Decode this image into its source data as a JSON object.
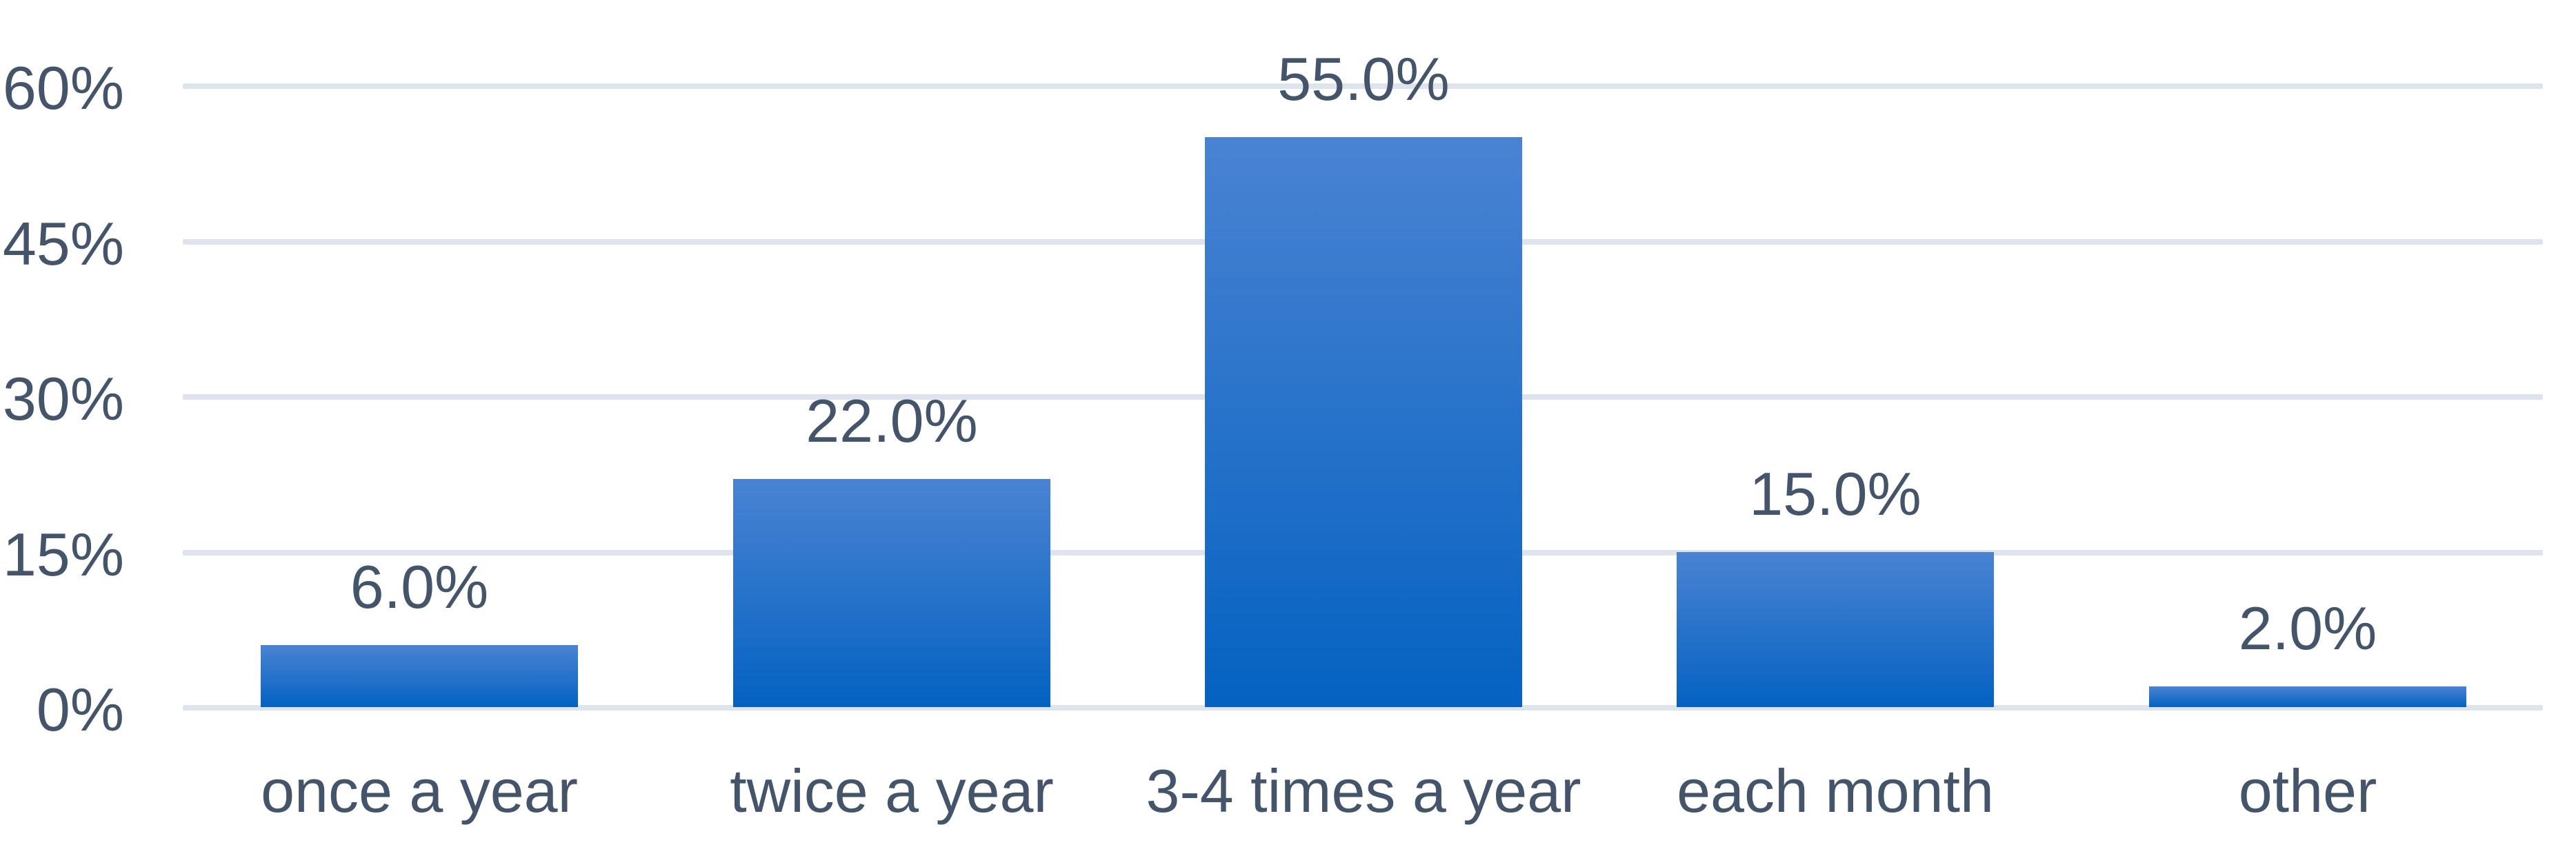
{
  "chart_data": {
    "type": "bar",
    "title": "",
    "categories": [
      "once a year",
      "twice a year",
      "3-4 times a year",
      "each month",
      "other"
    ],
    "values": [
      6.0,
      22.0,
      55.0,
      15.0,
      2.0
    ],
    "data_labels": [
      "6.0%",
      "22.0%",
      "55.0%",
      "15.0%",
      "2.0%"
    ],
    "y_ticks": [
      {
        "label": "0%",
        "value": 0
      },
      {
        "label": "15%",
        "value": 15
      },
      {
        "label": "30%",
        "value": 30
      },
      {
        "label": "45%",
        "value": 45
      },
      {
        "label": "60%",
        "value": 60
      }
    ],
    "ylim": [
      0,
      60
    ],
    "xlabel": "",
    "ylabel": "",
    "grid": true,
    "legend": false
  },
  "colors": {
    "background": "#FFFFFF",
    "text": "#44546A",
    "gridline": "#DEE4ED",
    "bar_gradient_top": "#4A83D3",
    "bar_gradient_bottom": "#0462C1"
  }
}
